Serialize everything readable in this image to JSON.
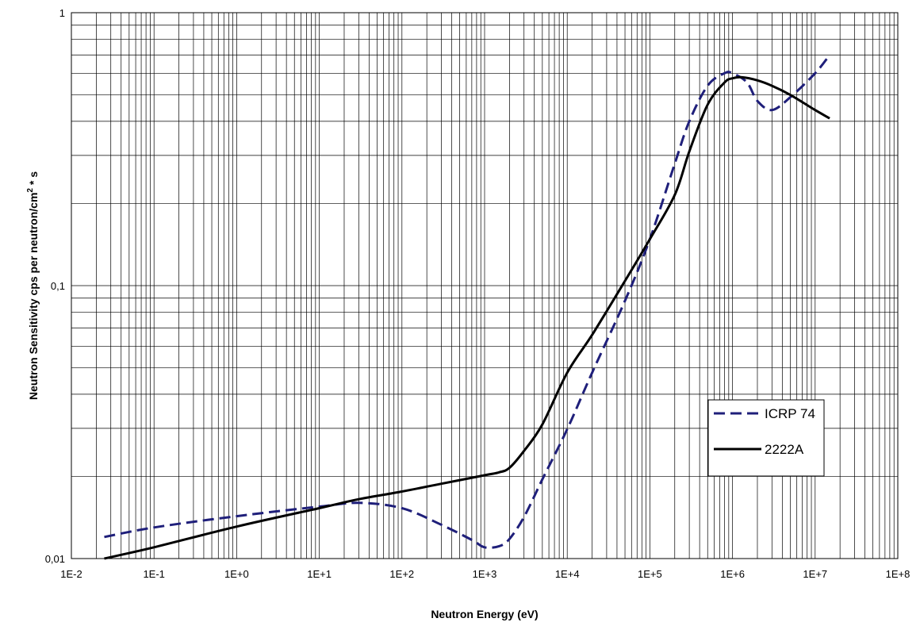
{
  "chart_data": {
    "type": "line",
    "title": "",
    "xlabel": "Neutron Energy (eV)",
    "ylabel": {
      "main": "Neutron Sensitivity cps per neutron/cm",
      "superscript": "2",
      "tail": " * s"
    },
    "x_scale": "log",
    "y_scale": "log",
    "xlim": [
      0.01,
      100000000
    ],
    "ylim": [
      0.01,
      1
    ],
    "x_ticks": [
      {
        "value": 0.01,
        "label": "1E-2"
      },
      {
        "value": 0.1,
        "label": "1E-1"
      },
      {
        "value": 1,
        "label": "1E+0"
      },
      {
        "value": 10,
        "label": "1E+1"
      },
      {
        "value": 100,
        "label": "1E+2"
      },
      {
        "value": 1000,
        "label": "1E+3"
      },
      {
        "value": 10000,
        "label": "1E+4"
      },
      {
        "value": 100000,
        "label": "1E+5"
      },
      {
        "value": 1000000,
        "label": "1E+6"
      },
      {
        "value": 10000000,
        "label": "1E+7"
      },
      {
        "value": 100000000,
        "label": "1E+8"
      }
    ],
    "y_ticks": [
      {
        "value": 0.01,
        "label": "0,01"
      },
      {
        "value": 0.1,
        "label": "0,1"
      },
      {
        "value": 1,
        "label": "1"
      }
    ],
    "grid": true,
    "legend_position": "right-middle",
    "series": [
      {
        "name": "ICRP 74",
        "style": "dashed",
        "color": "#1f1f7a",
        "x": [
          0.025,
          0.1,
          1,
          10,
          30,
          100,
          300,
          700,
          1000,
          1500,
          2000,
          3000,
          5000,
          10000,
          20000,
          50000,
          100000,
          200000,
          300000,
          500000,
          800000,
          1000000,
          1500000,
          2000000,
          3000000,
          5000000,
          10000000,
          15000000
        ],
        "y": [
          0.012,
          0.013,
          0.0143,
          0.0155,
          0.016,
          0.0153,
          0.0133,
          0.0117,
          0.011,
          0.0111,
          0.0118,
          0.0142,
          0.0195,
          0.0298,
          0.048,
          0.088,
          0.148,
          0.28,
          0.4,
          0.54,
          0.6,
          0.6,
          0.555,
          0.475,
          0.44,
          0.49,
          0.6,
          0.7
        ]
      },
      {
        "name": "2222A",
        "style": "solid",
        "color": "#000000",
        "x": [
          0.025,
          0.1,
          1,
          10,
          30,
          100,
          300,
          1000,
          1500,
          2000,
          3000,
          5000,
          10000,
          20000,
          50000,
          100000,
          200000,
          300000,
          500000,
          800000,
          1000000,
          1300000,
          2000000,
          3000000,
          5000000,
          10000000,
          15000000
        ],
        "y": [
          0.01,
          0.011,
          0.0131,
          0.0153,
          0.0165,
          0.0176,
          0.0188,
          0.0202,
          0.0207,
          0.0215,
          0.0248,
          0.031,
          0.048,
          0.066,
          0.104,
          0.148,
          0.215,
          0.31,
          0.46,
          0.555,
          0.575,
          0.58,
          0.565,
          0.54,
          0.5,
          0.44,
          0.41
        ]
      }
    ]
  }
}
